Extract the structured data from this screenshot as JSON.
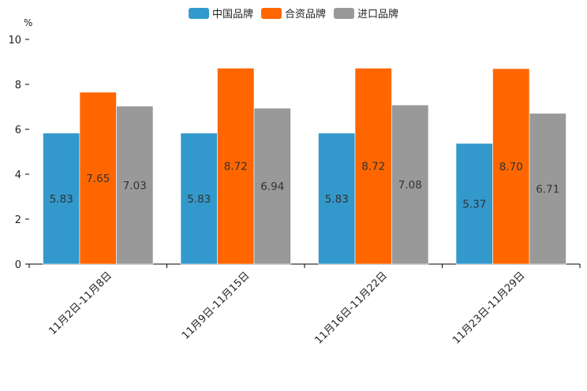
{
  "colors": {
    "series1": "#3399cc",
    "series2": "#ff6600",
    "series3": "#999999",
    "axis": "#000000",
    "label": "#333333"
  },
  "chart_data": {
    "type": "bar",
    "title": "",
    "xlabel": "",
    "ylabel": "%",
    "ylim": [
      0,
      10
    ],
    "yticks": [
      "0",
      "2",
      "4",
      "6",
      "8",
      "10"
    ],
    "categories": [
      "11月2日-11月8日",
      "11月9日-11月15日",
      "11月16日-11月22日",
      "11月23日-11月29日"
    ],
    "series": [
      {
        "name": "中国品牌",
        "values": [
          5.83,
          5.83,
          5.83,
          5.37
        ],
        "labels": [
          "5.83",
          "5.83",
          "5.83",
          "5.37"
        ]
      },
      {
        "name": "合资品牌",
        "values": [
          7.65,
          8.72,
          8.72,
          8.7
        ],
        "labels": [
          "7.65",
          "8.72",
          "8.72",
          "8.70"
        ]
      },
      {
        "name": "进口品牌",
        "values": [
          7.03,
          6.94,
          7.08,
          6.71
        ],
        "labels": [
          "7.03",
          "6.94",
          "7.08",
          "6.71"
        ]
      }
    ],
    "legend": "top-center",
    "grid": false
  }
}
